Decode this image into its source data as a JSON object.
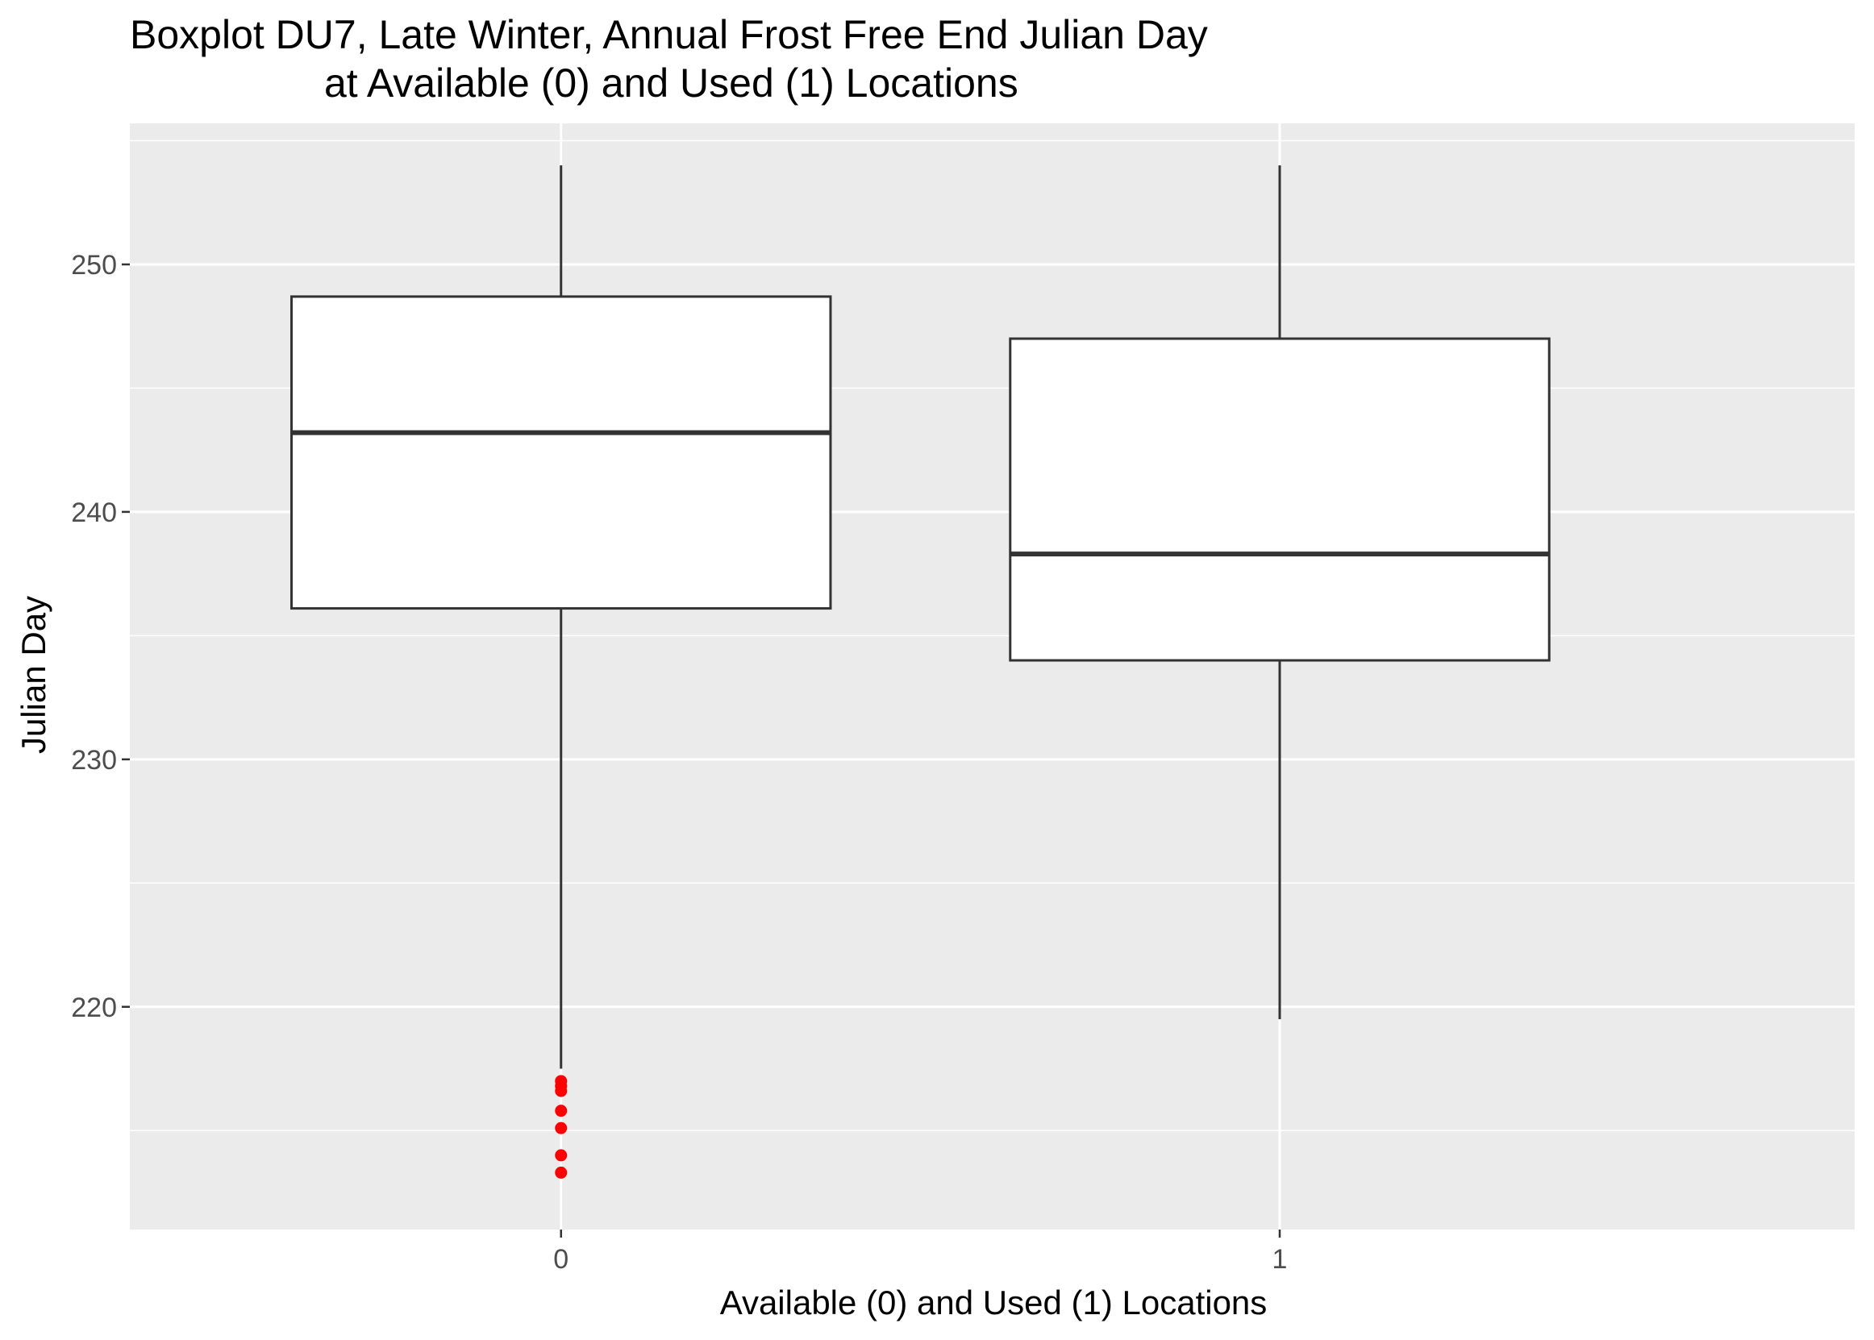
{
  "chart_data": {
    "type": "boxplot",
    "title": "Boxplot DU7, Late Winter, Annual Frost Free End Julian Day",
    "subtitle": "at Available (0) and Used (1) Locations",
    "xlabel": "Available (0) and Used (1) Locations",
    "ylabel": "Julian Day",
    "categories": [
      "0",
      "1"
    ],
    "yticks": [
      220,
      230,
      240,
      250
    ],
    "ylim": [
      211,
      255.7
    ],
    "grid": true,
    "boxes": [
      {
        "category": "0",
        "whisker_low": 217.5,
        "q1": 236.1,
        "median": 243.2,
        "q3": 248.7,
        "whisker_high": 254
      },
      {
        "category": "1",
        "whisker_low": 219.5,
        "q1": 234,
        "median": 238.3,
        "q3": 247,
        "whisker_high": 254
      }
    ],
    "outliers": [
      {
        "category": "0",
        "values": [
          217,
          216.8,
          216.6,
          215.8,
          215.1,
          214,
          213.3
        ]
      }
    ],
    "colors": {
      "panel": "#ebebeb",
      "grid": "#ffffff",
      "box_fill": "#ffffff",
      "box_line": "#333333",
      "outlier": "#ff0000"
    }
  }
}
